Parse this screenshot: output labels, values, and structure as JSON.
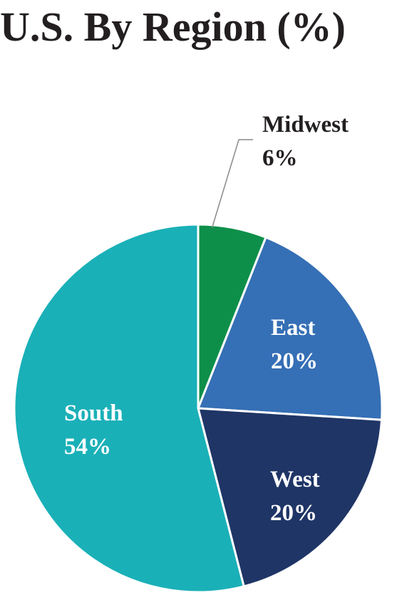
{
  "title": "U.S. By Region (%)",
  "chart_data": {
    "type": "pie",
    "title": "U.S. By Region (%)",
    "slices": [
      {
        "name": "Midwest",
        "value": 6,
        "label": "6%",
        "color": "#0d8f4a"
      },
      {
        "name": "East",
        "value": 20,
        "label": "20%",
        "color": "#356fb5"
      },
      {
        "name": "West",
        "value": 20,
        "label": "20%",
        "color": "#1f3566"
      },
      {
        "name": "South",
        "value": 54,
        "label": "54%",
        "color": "#1ab0b8"
      }
    ],
    "start": "12 o'clock",
    "direction": "clockwise",
    "legend": "none",
    "label_colors": {
      "inside": "#ffffff",
      "outside": "#231f20"
    }
  }
}
